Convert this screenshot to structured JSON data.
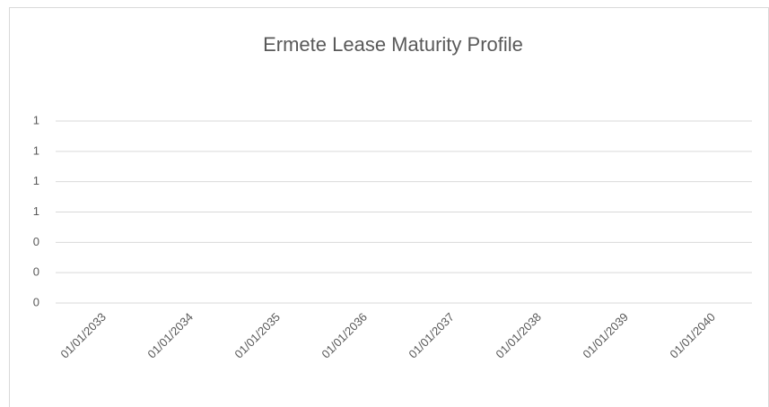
{
  "chart_data": {
    "type": "line",
    "title": "Ermete Lease Maturity Profile",
    "categories": [
      "01/01/2033",
      "01/01/2034",
      "01/01/2035",
      "01/01/2036",
      "01/01/2037",
      "01/01/2038",
      "01/01/2039",
      "01/01/2040"
    ],
    "values": [
      null,
      null,
      null,
      null,
      null,
      null,
      null,
      null
    ],
    "color": "#4472c4",
    "ylim": [
      0,
      1.2
    ],
    "yticks": [
      0,
      {
        "value": 0.2,
        "label": "0"
      },
      {
        "value": 0.4,
        "label": "0"
      },
      {
        "value": 0.6,
        "label": "1"
      },
      {
        "value": 0.8,
        "label": "1"
      },
      1,
      {
        "value": 1.2,
        "label": "1"
      }
    ],
    "grid": true
  }
}
